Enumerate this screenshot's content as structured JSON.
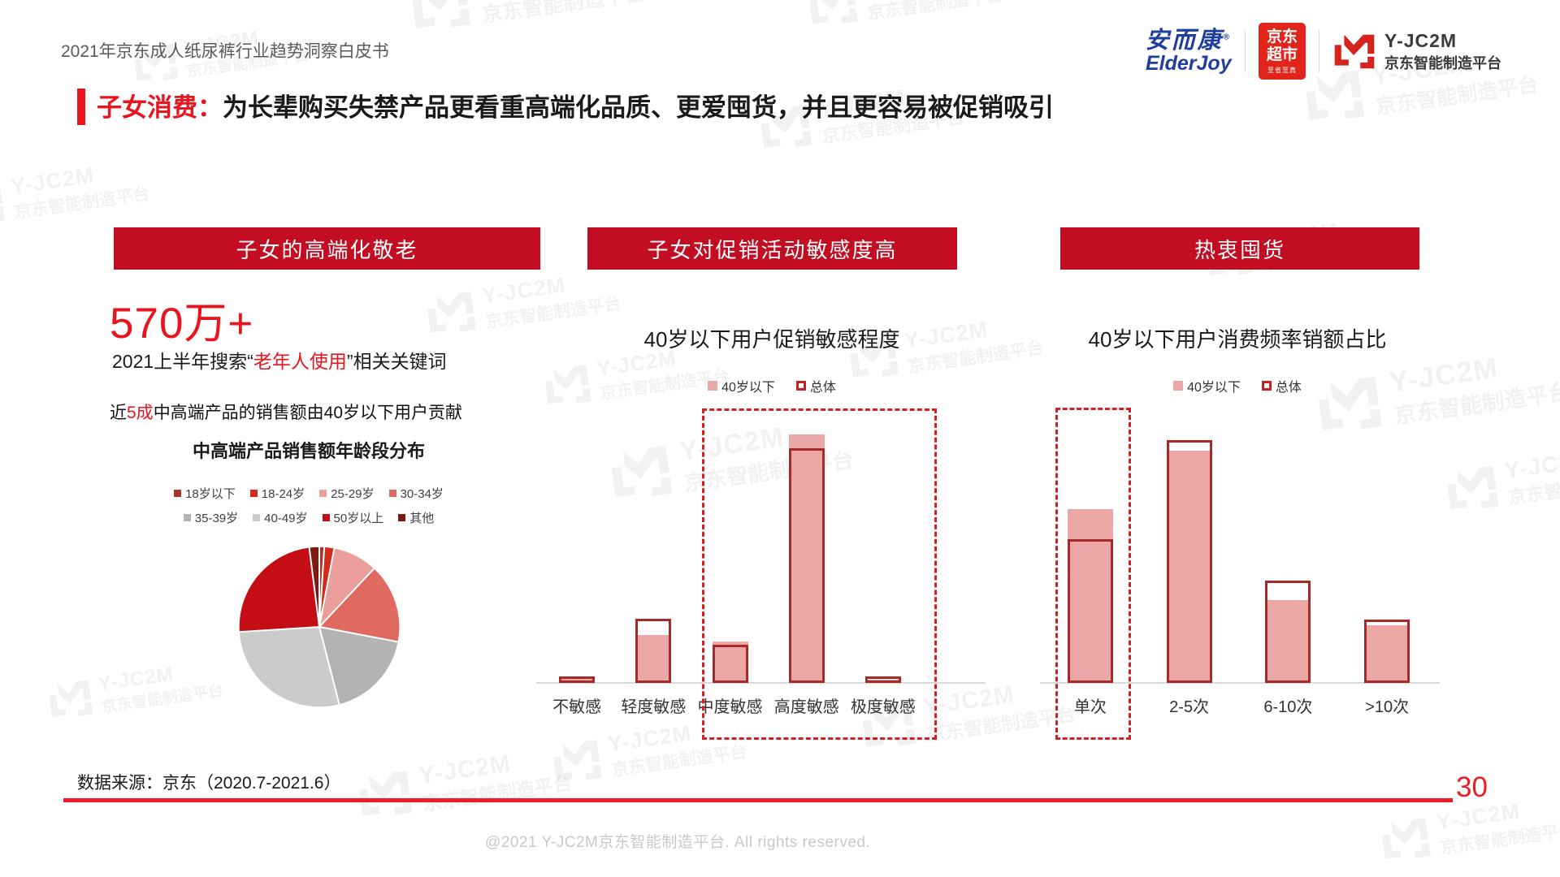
{
  "header": {
    "doc_title": "2021年京东成人纸尿裤行业趋势洞察白皮书",
    "logos": {
      "elderjoy_cn": "安而康",
      "elderjoy_reg": "®",
      "elderjoy_en": "ElderJoy",
      "jd_market_line1": "京东",
      "jd_market_line2": "超市",
      "jd_market_slogan": "至省至真",
      "yjc2m_name": "Y-JC2M",
      "yjc2m_sub": "京东智能制造平台"
    }
  },
  "title": {
    "label": "子女消费：",
    "text": "为长辈购买失禁产品更看重高端化品质、更爱囤货，并且更容易被促销吸引"
  },
  "sections": {
    "left_header": "子女的高端化敬老",
    "middle_header": "子女对促销活动敏感度高",
    "right_header": "热衷囤货"
  },
  "left_panel": {
    "big_number": "570万+",
    "search_line": {
      "pre": "2021上半年搜索“",
      "highlight": "老年人使用",
      "post": "”相关关键词"
    },
    "stat_line": {
      "pre": "近",
      "highlight": "5成",
      "post": "中高端产品的销售额由40岁以下用户贡献"
    }
  },
  "chart_data": [
    {
      "type": "pie",
      "title": "中高端产品销售额年龄段分布",
      "labels": [
        "18岁以下",
        "18-24岁",
        "25-29岁",
        "30-34岁",
        "35-39岁",
        "40-49岁",
        "50岁以上",
        "其他"
      ],
      "values": [
        1,
        2,
        9,
        16,
        18,
        28,
        24,
        2
      ],
      "unit": "%",
      "colors": [
        "#a8392a",
        "#d22b1e",
        "#ec9e9c",
        "#e06a62",
        "#b3b3b3",
        "#cbcbcb",
        "#c50d16",
        "#7c1a13"
      ],
      "legend_position": "top",
      "start_angle_deg": -90,
      "direction": "clockwise"
    },
    {
      "type": "bar",
      "title": "40岁以下用户促销敏感程度",
      "categories": [
        "不敏感",
        "轻度敏感",
        "中度敏感",
        "高度敏感",
        "极度敏感"
      ],
      "series": [
        {
          "name": "40岁以下",
          "style": "filled",
          "values": [
            1.5,
            14,
            12,
            72,
            1
          ]
        },
        {
          "name": "总体",
          "style": "outline",
          "values": [
            2,
            18.5,
            11,
            68,
            2
          ]
        }
      ],
      "unit": "%",
      "ylim": [
        0,
        80
      ],
      "grid": false,
      "legend_position": "top",
      "highlight_box_categories": [
        "中度敏感",
        "高度敏感",
        "极度敏感"
      ]
    },
    {
      "type": "bar",
      "title": "40岁以下用户消费频率销额占比",
      "categories": [
        "单次",
        "2-5次",
        "6-10次",
        ">10次"
      ],
      "series": [
        {
          "name": "40岁以下",
          "style": "filled",
          "values": [
            31.5,
            42,
            15,
            10.5
          ]
        },
        {
          "name": "总体",
          "style": "outline",
          "values": [
            26,
            44,
            18.5,
            11.5
          ]
        }
      ],
      "unit": "%",
      "ylim": [
        0,
        50
      ],
      "grid": false,
      "legend_position": "top",
      "highlight_box_categories": [
        "单次"
      ]
    }
  ],
  "watermark": {
    "line1": "Y-JC2M",
    "line2": "京东智能制造平台"
  },
  "footer": {
    "source": "数据来源：京东（2020.7-2021.6）",
    "page": "30",
    "copyright": "@2021 Y-JC2M京东智能制造平台. All rights reserved."
  },
  "colors": {
    "accent_red": "#e8141e",
    "section_bar_red": "#c30d23",
    "bar_fill_pink": "#eba6a6",
    "bar_outline_red": "#a62a2a",
    "dashed_box_red": "#d42020",
    "jd_logo_red": "#e1251b",
    "elderjoy_blue": "#1f3f9e",
    "axis_gray": "#dadada",
    "footer_line_red": "#ee1c25"
  }
}
